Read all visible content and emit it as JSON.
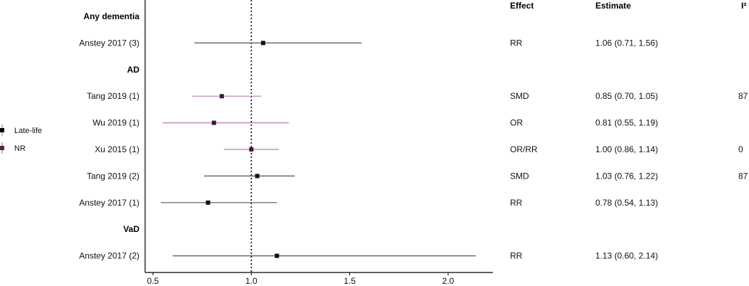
{
  "chart_data": {
    "type": "forest",
    "xlim": [
      0.45,
      2.2
    ],
    "reference_line": 1.0,
    "x_ticks": [
      0.5,
      1.0,
      1.5,
      2.0
    ],
    "x_tick_labels": [
      "0.5",
      "1.0",
      "1.5",
      "2.0"
    ],
    "column_headers": {
      "effect": "Effect",
      "estimate": "Estimate",
      "i2": "I²"
    },
    "legend": {
      "placement": "left",
      "items": [
        {
          "label": "Late-life",
          "color": "#000000"
        },
        {
          "label": "NR",
          "color": "#5a1f4a"
        }
      ]
    },
    "colors": {
      "Late-life": "#555555",
      "NR": "#b77fb0",
      "Late-life_marker": "#111111",
      "NR_marker": "#4a1240"
    },
    "rows": [
      {
        "kind": "group",
        "label": "Any dementia"
      },
      {
        "kind": "study",
        "label": "Anstey 2017 (3)",
        "group": "Late-life",
        "est": 1.06,
        "lo": 0.71,
        "hi": 1.56,
        "effect": "RR",
        "estimate_text": "1.06 (0.71, 1.56)",
        "i2": ""
      },
      {
        "kind": "group",
        "label": "AD"
      },
      {
        "kind": "study",
        "label": "Tang 2019 (1)",
        "group": "NR",
        "est": 0.85,
        "lo": 0.7,
        "hi": 1.05,
        "effect": "SMD",
        "estimate_text": "0.85 (0.70, 1.05)",
        "i2": "87"
      },
      {
        "kind": "study",
        "label": "Wu 2019 (1)",
        "group": "NR",
        "est": 0.81,
        "lo": 0.55,
        "hi": 1.19,
        "effect": "OR",
        "estimate_text": "0.81 (0.55, 1.19)",
        "i2": ""
      },
      {
        "kind": "study",
        "label": "Xu 2015 (1)",
        "group": "NR",
        "est": 1.0,
        "lo": 0.86,
        "hi": 1.14,
        "effect": "OR/RR",
        "estimate_text": "1.00 (0.86, 1.14)",
        "i2": "0"
      },
      {
        "kind": "study",
        "label": "Tang 2019 (2)",
        "group": "Late-life",
        "est": 1.03,
        "lo": 0.76,
        "hi": 1.22,
        "effect": "SMD",
        "estimate_text": "1.03 (0.76, 1.22)",
        "i2": "87"
      },
      {
        "kind": "study",
        "label": "Anstey 2017 (1)",
        "group": "Late-life",
        "est": 0.78,
        "lo": 0.54,
        "hi": 1.13,
        "effect": "RR",
        "estimate_text": "0.78 (0.54, 1.13)",
        "i2": ""
      },
      {
        "kind": "group",
        "label": "VaD"
      },
      {
        "kind": "study",
        "label": "Anstey 2017 (2)",
        "group": "Late-life",
        "est": 1.13,
        "lo": 0.6,
        "hi": 2.14,
        "effect": "RR",
        "estimate_text": "1.13 (0.60, 2.14)",
        "i2": ""
      }
    ]
  }
}
